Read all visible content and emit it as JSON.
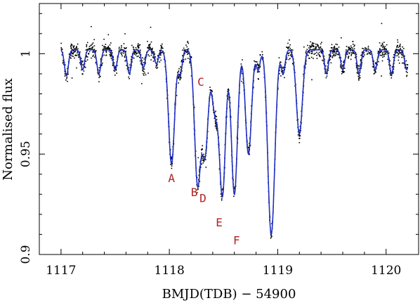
{
  "chart_data": {
    "type": "scatter",
    "title": "",
    "xlabel": "BMJD(TDB) − 54900",
    "ylabel": "Normalised flux",
    "xlim": [
      1116.8,
      1120.3
    ],
    "ylim": [
      0.9,
      1.025
    ],
    "grid": false,
    "legend": "none",
    "x_ticks": [
      1117,
      1118,
      1119,
      1120
    ],
    "x_tick_labels": [
      "1117",
      "1118",
      "1119",
      "1120"
    ],
    "y_ticks": [
      0.9,
      0.95,
      1.0
    ],
    "y_tick_labels": [
      "0.9",
      "0.95",
      "1"
    ],
    "series": [
      {
        "kind": "observed points",
        "color": "#000000",
        "x_range": [
          1117.0,
          1120.2
        ],
        "baseline": 1.002,
        "scatter": 0.004
      },
      {
        "kind": "model curve",
        "color": "#1f2fbf",
        "baseline": 1.002,
        "dips": [
          {
            "x": 1117.05,
            "depth": 0.013
          },
          {
            "x": 1117.2,
            "depth": 0.01
          },
          {
            "x": 1117.35,
            "depth": 0.012
          },
          {
            "x": 1117.5,
            "depth": 0.01
          },
          {
            "x": 1117.63,
            "depth": 0.012
          },
          {
            "x": 1117.76,
            "depth": 0.009
          },
          {
            "x": 1117.88,
            "depth": 0.007
          },
          {
            "x": 1118.02,
            "depth": 0.057
          },
          {
            "x": 1118.1,
            "depth": 0.012
          },
          {
            "x": 1118.26,
            "depth": 0.066
          },
          {
            "x": 1118.33,
            "depth": 0.051
          },
          {
            "x": 1118.42,
            "depth": 0.03
          },
          {
            "x": 1118.49,
            "depth": 0.072
          },
          {
            "x": 1118.6,
            "depth": 0.072
          },
          {
            "x": 1118.73,
            "depth": 0.052
          },
          {
            "x": 1118.82,
            "depth": 0.01
          },
          {
            "x": 1118.93,
            "depth": 0.065
          },
          {
            "x": 1118.96,
            "depth": 0.04
          },
          {
            "x": 1119.05,
            "depth": 0.012
          },
          {
            "x": 1119.2,
            "depth": 0.042
          },
          {
            "x": 1119.45,
            "depth": 0.012
          },
          {
            "x": 1119.6,
            "depth": 0.01
          },
          {
            "x": 1119.75,
            "depth": 0.012
          },
          {
            "x": 1119.9,
            "depth": 0.01
          },
          {
            "x": 1120.05,
            "depth": 0.012
          },
          {
            "x": 1120.19,
            "depth": 0.01
          }
        ]
      }
    ],
    "annotations": [
      {
        "text": "A",
        "x": 1118.02,
        "y": 0.936
      },
      {
        "text": "B",
        "x": 1118.23,
        "y": 0.929
      },
      {
        "text": "C",
        "x": 1118.29,
        "y": 0.984
      },
      {
        "text": "D",
        "x": 1118.31,
        "y": 0.926
      },
      {
        "text": "E",
        "x": 1118.46,
        "y": 0.914
      },
      {
        "text": "F",
        "x": 1118.62,
        "y": 0.905
      }
    ]
  }
}
